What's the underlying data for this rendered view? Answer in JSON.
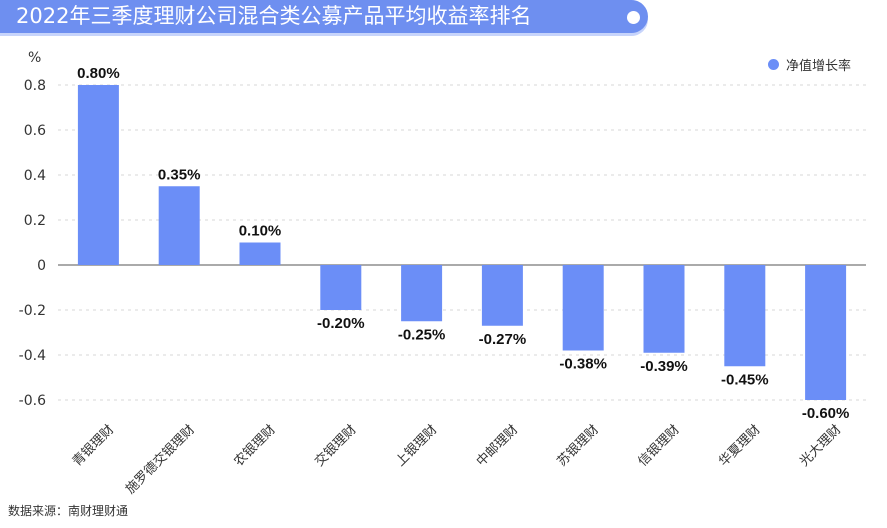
{
  "title": "2022年三季度理财公司混合类公募产品平均收益率排名",
  "source": "数据来源：南财理财通",
  "colors": {
    "bar": "#6b8ef7",
    "title_bg": "#6e8ff0",
    "grid": "#d7d7d7"
  },
  "chart_data": {
    "type": "bar",
    "unit_label": "%",
    "categories": [
      "青银理财",
      "施罗德交银理财",
      "农银理财",
      "交银理财",
      "上银理财",
      "中邮理财",
      "苏银理财",
      "信银理财",
      "华夏理财",
      "光大理财"
    ],
    "series": [
      {
        "name": "净值增长率",
        "values": [
          0.8,
          0.35,
          0.1,
          -0.2,
          -0.25,
          -0.27,
          -0.38,
          -0.39,
          -0.45,
          -0.6
        ]
      }
    ],
    "data_labels": [
      "0.80%",
      "0.35%",
      "0.10%",
      "-0.20%",
      "-0.25%",
      "-0.27%",
      "-0.38%",
      "-0.39%",
      "-0.45%",
      "-0.60%"
    ],
    "yticks": [
      0.8,
      0.6,
      0.4,
      0.2,
      0,
      -0.2,
      -0.4,
      -0.6
    ],
    "ytick_labels": [
      "0.8",
      "0.6",
      "0.4",
      "0.2",
      "0",
      "-0.2",
      "-0.4",
      "-0.6"
    ],
    "ylim": [
      -0.64,
      0.85
    ],
    "grid": true,
    "legend_position": "top-right"
  }
}
